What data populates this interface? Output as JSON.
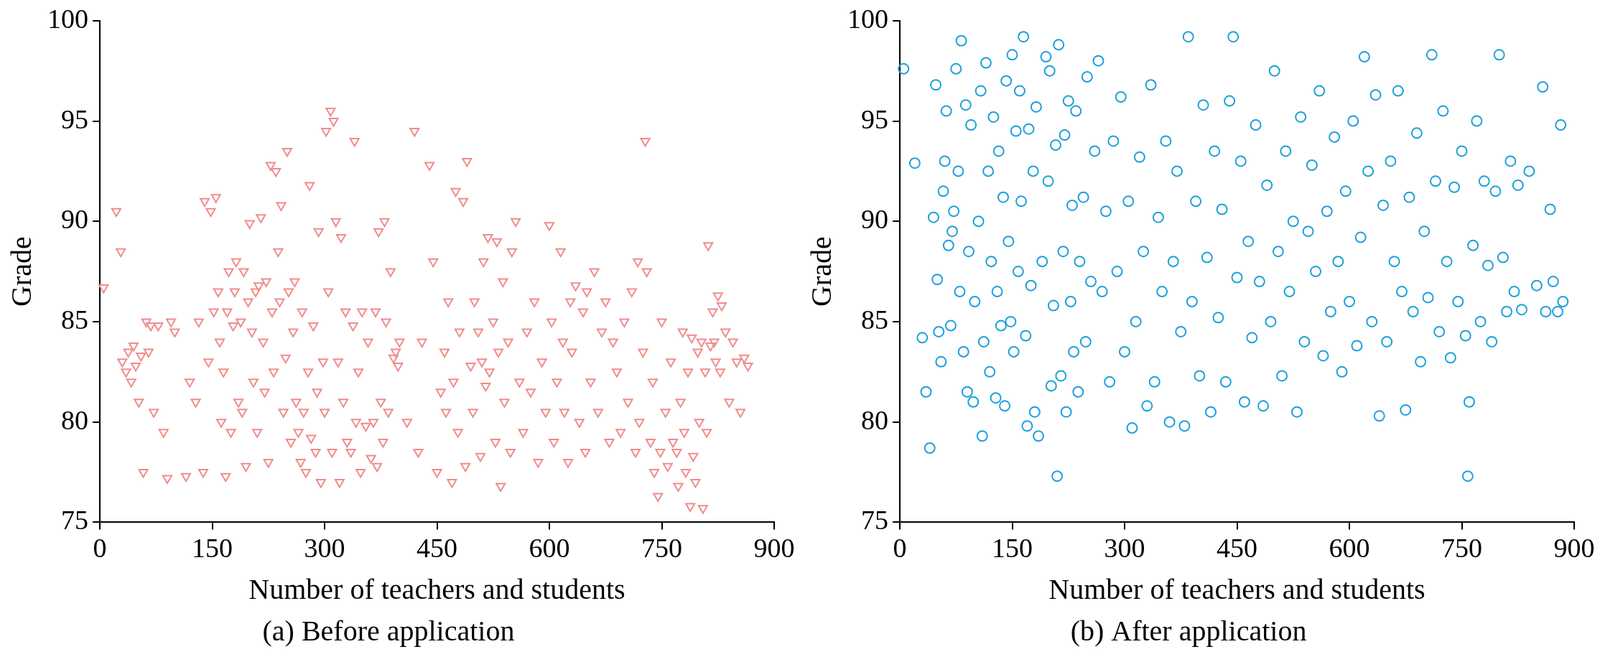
{
  "chart_data": [
    {
      "type": "scatter",
      "title": "(a) Before application",
      "x_label": "Number of teachers and students",
      "y_label": "Grade",
      "color": "#f08c8c",
      "marker": "triangle-down",
      "grid": false,
      "xlim": [
        0,
        900
      ],
      "ylim": [
        75,
        100
      ],
      "xticks": [
        0,
        150,
        300,
        450,
        600,
        750,
        900
      ],
      "yticks": [
        75,
        80,
        85,
        90,
        95,
        100
      ],
      "x": [
        5,
        22,
        28,
        30,
        35,
        38,
        42,
        45,
        48,
        52,
        55,
        58,
        62,
        65,
        68,
        72,
        78,
        85,
        90,
        95,
        100,
        115,
        120,
        128,
        132,
        138,
        140,
        145,
        148,
        152,
        155,
        158,
        160,
        162,
        165,
        168,
        170,
        172,
        175,
        178,
        180,
        182,
        185,
        188,
        190,
        192,
        195,
        198,
        200,
        203,
        205,
        208,
        210,
        212,
        215,
        218,
        220,
        222,
        225,
        228,
        230,
        232,
        235,
        238,
        240,
        242,
        245,
        248,
        250,
        252,
        255,
        258,
        260,
        262,
        265,
        268,
        270,
        272,
        275,
        278,
        280,
        282,
        285,
        288,
        290,
        292,
        295,
        298,
        300,
        302,
        305,
        308,
        310,
        312,
        315,
        318,
        320,
        322,
        325,
        328,
        330,
        335,
        338,
        340,
        342,
        345,
        348,
        350,
        355,
        358,
        362,
        365,
        368,
        370,
        372,
        375,
        378,
        380,
        382,
        385,
        388,
        392,
        395,
        398,
        400,
        410,
        420,
        425,
        430,
        440,
        445,
        450,
        455,
        460,
        462,
        465,
        470,
        472,
        475,
        478,
        480,
        485,
        488,
        490,
        495,
        498,
        500,
        505,
        508,
        510,
        512,
        515,
        518,
        520,
        525,
        528,
        530,
        532,
        535,
        538,
        540,
        545,
        548,
        550,
        555,
        560,
        565,
        570,
        575,
        580,
        585,
        590,
        595,
        600,
        603,
        606,
        610,
        615,
        618,
        620,
        625,
        628,
        630,
        635,
        640,
        645,
        648,
        650,
        655,
        660,
        665,
        670,
        675,
        680,
        685,
        690,
        695,
        700,
        705,
        710,
        715,
        718,
        720,
        725,
        728,
        730,
        735,
        738,
        740,
        745,
        748,
        750,
        755,
        758,
        762,
        765,
        770,
        772,
        775,
        778,
        780,
        782,
        785,
        788,
        790,
        792,
        795,
        798,
        800,
        803,
        805,
        808,
        810,
        812,
        815,
        818,
        820,
        822,
        825,
        828,
        830,
        835,
        840,
        845,
        850,
        855,
        860,
        865
      ],
      "values": [
        86.7,
        90.5,
        88.5,
        83,
        82.5,
        83.5,
        82,
        83.8,
        82.8,
        81,
        83.3,
        77.5,
        85,
        83.5,
        84.8,
        80.5,
        84.8,
        79.5,
        77.2,
        85,
        84.5,
        77.3,
        82,
        81,
        85,
        77.5,
        91,
        83,
        90.5,
        85.5,
        91.2,
        86.5,
        84,
        80,
        82.5,
        77.3,
        85.5,
        87.5,
        79.5,
        84.8,
        86.5,
        88,
        81,
        85,
        80.5,
        87.5,
        77.8,
        86,
        89.9,
        84.5,
        82,
        86.5,
        79.5,
        86.8,
        90.2,
        84,
        81.5,
        87,
        78,
        92.8,
        85.5,
        82.5,
        92.5,
        88.5,
        86,
        90.8,
        80.5,
        83.2,
        93.5,
        86.5,
        79,
        84.5,
        87,
        81,
        79.5,
        78,
        85.5,
        80.5,
        77.5,
        82.5,
        91.8,
        79.2,
        84.8,
        78.5,
        81.5,
        89.5,
        77,
        83,
        80.5,
        94.5,
        86.5,
        95.5,
        78.5,
        95,
        90,
        83,
        77,
        89.2,
        81,
        85.5,
        79,
        78.5,
        84.8,
        94,
        80,
        82.5,
        77.5,
        85.5,
        79.8,
        84,
        78.2,
        80,
        85.5,
        77.8,
        89.5,
        81,
        79,
        90,
        85,
        80.5,
        87.5,
        83.2,
        83.5,
        82.8,
        84,
        80,
        94.5,
        78.5,
        84,
        92.8,
        88,
        77.5,
        81.5,
        83.5,
        80.5,
        86,
        77,
        82,
        91.5,
        79.5,
        84.5,
        91,
        77.8,
        93,
        82.8,
        80.5,
        86,
        84.5,
        78.3,
        83,
        88,
        81.8,
        89.2,
        82.5,
        85,
        79,
        89,
        83.5,
        76.8,
        87,
        81,
        84,
        78.5,
        88.5,
        90,
        82,
        79.5,
        84.5,
        81.5,
        86,
        78,
        83,
        80.5,
        89.8,
        85,
        79,
        82,
        88.5,
        84,
        80.5,
        78,
        86,
        83.5,
        86.8,
        80,
        85.5,
        78.5,
        86.5,
        82,
        87.5,
        80.5,
        84.5,
        86,
        79,
        84,
        82.5,
        79.5,
        85,
        81,
        86.5,
        78.5,
        88,
        80,
        83.5,
        94,
        87.5,
        79,
        82,
        77.5,
        76.3,
        78.5,
        85,
        80.5,
        77.8,
        83,
        79,
        78.5,
        76.8,
        81,
        84.5,
        79.5,
        77.5,
        82.5,
        75.8,
        84.2,
        78.3,
        77,
        83.5,
        80,
        84,
        75.7,
        82.5,
        79.5,
        88.8,
        83.8,
        85.5,
        84,
        83,
        86.3,
        82.5,
        85.8,
        84.5,
        81,
        84,
        83,
        80.5,
        83.2,
        82.8
      ]
    },
    {
      "type": "scatter",
      "title": "(b) After application",
      "x_label": "Number of teachers and students",
      "y_label": "Grade",
      "color": "#1ea0dc",
      "marker": "circle",
      "grid": false,
      "xlim": [
        0,
        900
      ],
      "ylim": [
        75,
        100
      ],
      "xticks": [
        0,
        150,
        300,
        450,
        600,
        750,
        900
      ],
      "yticks": [
        75,
        80,
        85,
        90,
        95,
        100
      ],
      "x": [
        5,
        20,
        30,
        35,
        40,
        45,
        48,
        50,
        52,
        55,
        58,
        60,
        62,
        65,
        68,
        70,
        72,
        75,
        78,
        80,
        82,
        85,
        88,
        90,
        92,
        95,
        98,
        100,
        105,
        108,
        110,
        112,
        115,
        118,
        120,
        122,
        125,
        128,
        130,
        132,
        135,
        138,
        140,
        142,
        145,
        148,
        150,
        152,
        155,
        158,
        160,
        162,
        165,
        168,
        170,
        172,
        175,
        178,
        180,
        182,
        185,
        190,
        195,
        198,
        200,
        202,
        205,
        208,
        210,
        212,
        215,
        218,
        220,
        222,
        225,
        228,
        230,
        232,
        235,
        238,
        240,
        245,
        248,
        250,
        255,
        260,
        265,
        270,
        275,
        280,
        285,
        290,
        295,
        300,
        305,
        310,
        315,
        320,
        325,
        330,
        335,
        340,
        345,
        350,
        355,
        360,
        365,
        370,
        375,
        380,
        385,
        390,
        395,
        400,
        405,
        410,
        415,
        420,
        425,
        430,
        435,
        440,
        445,
        450,
        455,
        460,
        465,
        470,
        475,
        480,
        485,
        490,
        495,
        500,
        505,
        510,
        515,
        520,
        525,
        530,
        535,
        540,
        545,
        550,
        555,
        560,
        565,
        570,
        575,
        580,
        585,
        590,
        595,
        600,
        605,
        610,
        615,
        620,
        625,
        630,
        635,
        640,
        645,
        650,
        655,
        660,
        665,
        670,
        675,
        680,
        685,
        690,
        695,
        700,
        705,
        710,
        715,
        720,
        725,
        730,
        735,
        740,
        745,
        750,
        755,
        758,
        760,
        765,
        770,
        775,
        780,
        785,
        790,
        795,
        800,
        805,
        810,
        815,
        820,
        825,
        830,
        840,
        850,
        858,
        862,
        868,
        872,
        878,
        882,
        885
      ],
      "values": [
        97.6,
        92.9,
        84.2,
        81.5,
        78.7,
        90.2,
        96.8,
        87.1,
        84.5,
        83,
        91.5,
        93,
        95.5,
        88.8,
        84.8,
        89.5,
        90.5,
        97.6,
        92.5,
        86.5,
        99,
        83.5,
        95.8,
        81.5,
        88.5,
        94.8,
        81,
        86,
        90,
        96.5,
        79.3,
        84,
        97.9,
        92.5,
        82.5,
        88,
        95.2,
        81.2,
        86.5,
        93.5,
        84.8,
        91.2,
        80.8,
        97,
        89,
        85,
        98.3,
        83.5,
        94.5,
        87.5,
        96.5,
        91,
        99.2,
        84.3,
        79.8,
        94.6,
        86.8,
        92.5,
        80.5,
        95.7,
        79.3,
        88,
        98.2,
        92,
        97.5,
        81.8,
        85.8,
        93.8,
        77.3,
        98.8,
        82.3,
        88.5,
        94.3,
        80.5,
        96,
        86,
        90.8,
        83.5,
        95.5,
        81.5,
        88,
        91.2,
        84,
        97.2,
        87,
        93.5,
        98,
        86.5,
        90.5,
        82,
        94,
        87.5,
        96.2,
        83.5,
        91,
        79.7,
        85,
        93.2,
        88.5,
        80.8,
        96.8,
        82,
        90.2,
        86.5,
        94,
        80,
        88,
        92.5,
        84.5,
        79.8,
        99.2,
        86,
        91,
        82.3,
        95.8,
        88.2,
        80.5,
        93.5,
        85.2,
        90.6,
        82,
        96,
        99.2,
        87.2,
        93,
        81,
        89,
        84.2,
        94.8,
        87,
        80.8,
        91.8,
        85,
        97.5,
        88.5,
        82.3,
        93.5,
        86.5,
        90,
        80.5,
        95.2,
        84,
        89.5,
        92.8,
        87.5,
        96.5,
        83.3,
        90.5,
        85.5,
        94.2,
        88,
        82.5,
        91.5,
        86,
        95,
        83.8,
        89.2,
        98.2,
        92.5,
        85,
        96.3,
        80.3,
        90.8,
        84,
        93,
        88,
        96.5,
        86.5,
        80.6,
        91.2,
        85.5,
        94.4,
        83,
        89.5,
        86.2,
        98.3,
        92,
        84.5,
        95.5,
        88,
        83.2,
        91.7,
        86,
        93.5,
        84.3,
        77.3,
        81,
        88.8,
        95,
        85,
        92,
        87.8,
        84,
        91.5,
        98.3,
        88.2,
        85.5,
        93,
        86.5,
        91.8,
        85.6,
        92.5,
        86.8,
        96.7,
        85.5,
        90.6,
        87,
        85.5,
        94.8,
        86
      ]
    }
  ]
}
